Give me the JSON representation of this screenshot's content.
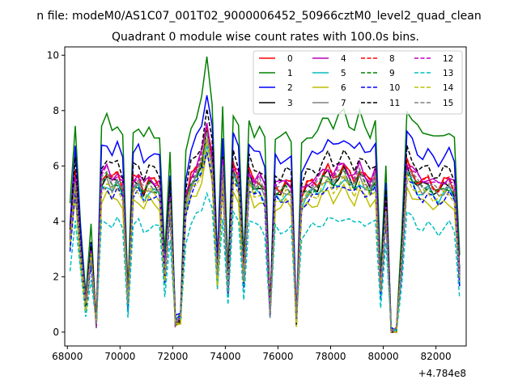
{
  "figure": {
    "suptitle": "n file: modeM0/AS1C07_001T02_9000006452_50966cztM0_level2_quad_clean",
    "title": "Quadrant 0 module wise count rates with 100.0s bins.",
    "offset_text": "+4.784e8"
  },
  "chart_data": {
    "type": "line",
    "title": "Quadrant 0 module wise count rates with 100.0s bins.",
    "xlabel": "",
    "ylabel": "",
    "x_offset": 478400000,
    "xlim": [
      67900,
      83150
    ],
    "ylim": [
      -0.5,
      10.3
    ],
    "xticks": [
      68000,
      70000,
      72000,
      74000,
      76000,
      78000,
      80000,
      82000
    ],
    "yticks": [
      0,
      2,
      4,
      6,
      8,
      10
    ],
    "grid": false,
    "legend_position": "upper right",
    "legend_columns": 4,
    "x_points": [
      68100,
      68300,
      68500,
      68700,
      68900,
      69100,
      69300,
      69500,
      69700,
      69900,
      70100,
      70300,
      70500,
      70700,
      70900,
      71100,
      71300,
      71500,
      71700,
      71900,
      72100,
      72300,
      72500,
      72700,
      72900,
      73100,
      73300,
      73500,
      73700,
      73900,
      74100,
      74300,
      74500,
      74700,
      74900,
      75100,
      75300,
      75500,
      75700,
      75900,
      76100,
      76300,
      76500,
      76700,
      76900,
      77100,
      77300,
      77500,
      77700,
      77900,
      78100,
      78300,
      78500,
      78700,
      78900,
      79100,
      79300,
      79500,
      79700,
      79900,
      80100,
      80300,
      80500,
      80700,
      80900,
      81100,
      81300,
      81500,
      81700,
      81900,
      82100,
      82300,
      82500,
      82700,
      82900
    ],
    "base_profile": [
      3.4,
      5.7,
      3.0,
      0.9,
      2.9,
      0.3,
      5.6,
      5.8,
      5.5,
      5.7,
      5.3,
      1.0,
      5.5,
      5.6,
      5.2,
      5.5,
      5.4,
      5.3,
      2.0,
      4.9,
      0.4,
      0.5,
      4.8,
      5.6,
      5.9,
      6.3,
      7.4,
      6.3,
      2.0,
      6.0,
      1.6,
      6.0,
      5.6,
      1.9,
      5.8,
      5.4,
      5.5,
      5.2,
      0.7,
      5.3,
      5.2,
      5.4,
      5.3,
      0.4,
      5.0,
      5.3,
      5.4,
      5.4,
      5.7,
      5.9,
      5.6,
      5.8,
      6.0,
      5.7,
      5.5,
      5.9,
      5.6,
      5.4,
      5.7,
      1.5,
      4.6,
      0.0,
      0.0,
      2.6,
      6.1,
      5.8,
      5.5,
      5.4,
      5.5,
      5.3,
      5.2,
      5.4,
      5.5,
      5.2,
      2.0
    ],
    "series": [
      {
        "name": "0",
        "color": "#ff0000",
        "dash": "solid",
        "scale": 1.0
      },
      {
        "name": "1",
        "color": "#008000",
        "dash": "solid",
        "scale": 1.33
      },
      {
        "name": "2",
        "color": "#0000ff",
        "dash": "solid",
        "scale": 1.18
      },
      {
        "name": "3",
        "color": "#000000",
        "dash": "solid",
        "scale": 0.97
      },
      {
        "name": "4",
        "color": "#bf00bf",
        "dash": "solid",
        "scale": 1.02
      },
      {
        "name": "5",
        "color": "#00bfbf",
        "dash": "solid",
        "scale": 0.93
      },
      {
        "name": "6",
        "color": "#bfbf00",
        "dash": "solid",
        "scale": 0.86
      },
      {
        "name": "7",
        "color": "#808080",
        "dash": "solid",
        "scale": 0.95
      },
      {
        "name": "8",
        "color": "#ff0000",
        "dash": "dashed",
        "scale": 1.0
      },
      {
        "name": "9",
        "color": "#008000",
        "dash": "dashed",
        "scale": 0.96
      },
      {
        "name": "10",
        "color": "#0000ff",
        "dash": "dashed",
        "scale": 0.9
      },
      {
        "name": "11",
        "color": "#000000",
        "dash": "dashed",
        "scale": 1.08
      },
      {
        "name": "12",
        "color": "#bf00bf",
        "dash": "dashed",
        "scale": 1.01
      },
      {
        "name": "13",
        "color": "#00bfbf",
        "dash": "dashed",
        "scale": 0.7
      },
      {
        "name": "14",
        "color": "#bfbf00",
        "dash": "dashed",
        "scale": 0.92
      },
      {
        "name": "15",
        "color": "#808080",
        "dash": "dashed",
        "scale": 0.98
      }
    ]
  }
}
